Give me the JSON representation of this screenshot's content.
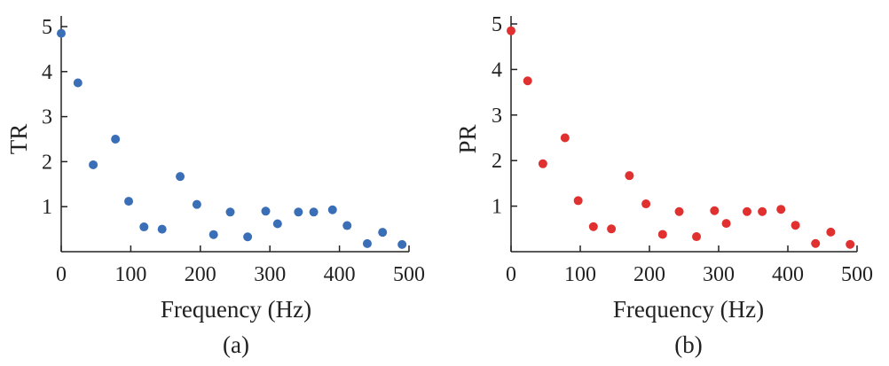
{
  "chart_data": [
    {
      "type": "scatter",
      "panel_label": "(a)",
      "xlabel": "Frequency (Hz)",
      "ylabel": "TR",
      "xlim": [
        0,
        500
      ],
      "ylim": [
        0,
        5
      ],
      "x_ticks": [
        0,
        100,
        200,
        300,
        400,
        500
      ],
      "y_ticks": [
        1,
        2,
        3,
        4,
        5
      ],
      "grid": false,
      "color": "#3a6fb8",
      "x": [
        0,
        24,
        46,
        78,
        97,
        119,
        145,
        171,
        195,
        219,
        243,
        268,
        294,
        311,
        341,
        363,
        390,
        411,
        440,
        462,
        490
      ],
      "y": [
        4.85,
        3.75,
        1.93,
        2.5,
        1.12,
        0.55,
        0.5,
        1.67,
        1.05,
        0.38,
        0.88,
        0.33,
        0.9,
        0.62,
        0.88,
        0.88,
        0.93,
        0.58,
        0.18,
        0.43,
        0.16
      ]
    },
    {
      "type": "scatter",
      "panel_label": "(b)",
      "xlabel": "Frequency (Hz)",
      "ylabel": "PR",
      "xlim": [
        0,
        500
      ],
      "ylim": [
        0,
        5
      ],
      "x_ticks": [
        0,
        100,
        200,
        300,
        400,
        500
      ],
      "y_ticks": [
        1,
        2,
        3,
        4,
        5
      ],
      "grid": false,
      "color": "#e03030",
      "x": [
        0,
        24,
        46,
        78,
        97,
        119,
        145,
        171,
        195,
        219,
        243,
        268,
        294,
        311,
        341,
        363,
        390,
        411,
        440,
        462,
        490
      ],
      "y": [
        4.85,
        3.75,
        1.93,
        2.5,
        1.12,
        0.55,
        0.5,
        1.67,
        1.05,
        0.38,
        0.88,
        0.33,
        0.9,
        0.62,
        0.88,
        0.88,
        0.93,
        0.58,
        0.18,
        0.43,
        0.16
      ]
    }
  ]
}
